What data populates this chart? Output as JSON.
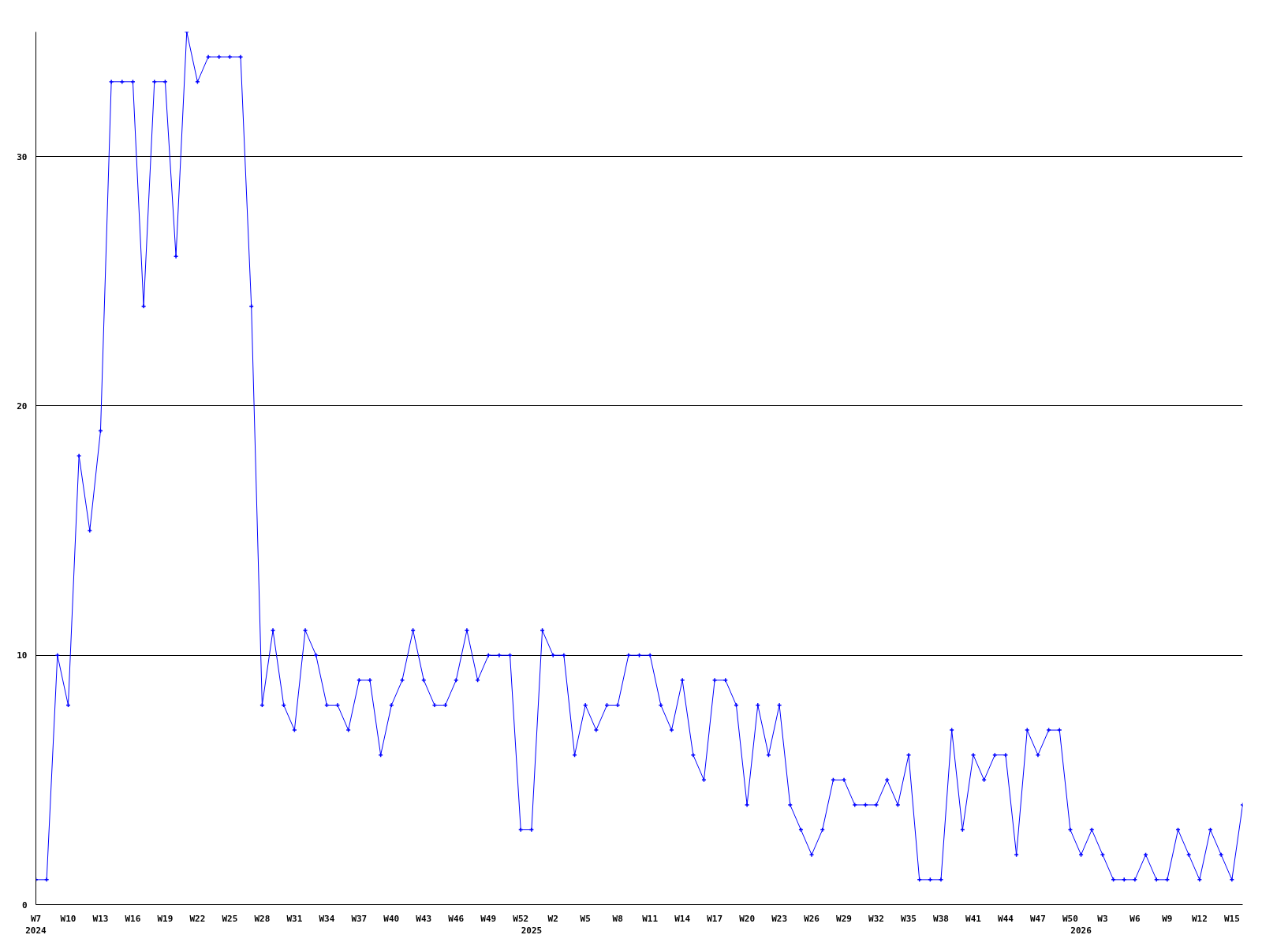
{
  "chart_data": {
    "type": "line",
    "categories": [
      "W7\n2024",
      null,
      null,
      "W10",
      null,
      null,
      "W13",
      null,
      null,
      "W16",
      null,
      null,
      "W19",
      null,
      null,
      "W22",
      null,
      null,
      "W25",
      null,
      null,
      "W28",
      null,
      null,
      "W31",
      null,
      null,
      "W34",
      null,
      null,
      "W37",
      null,
      null,
      "W40",
      null,
      null,
      "W43",
      null,
      null,
      "W46",
      null,
      null,
      "W49",
      null,
      null,
      "W52",
      "\n2025",
      null,
      "W2",
      null,
      null,
      "W5",
      null,
      null,
      "W8",
      null,
      null,
      "W11",
      null,
      null,
      "W14",
      null,
      null,
      "W17",
      null,
      null,
      "W20",
      null,
      null,
      "W23",
      null,
      null,
      "W26",
      null,
      null,
      "W29",
      null,
      null,
      "W32",
      null,
      null,
      "W35",
      null,
      null,
      "W38",
      null,
      null,
      "W41",
      null,
      null,
      "W44",
      null,
      null,
      "W47",
      null,
      null,
      "W50",
      "\n2026",
      null,
      "W3",
      null,
      null,
      "W6",
      null,
      null,
      "W9",
      null,
      null,
      "W12",
      null,
      null,
      "W15",
      null
    ],
    "series": [
      {
        "color": "#0000ff",
        "values": [
          1,
          1,
          10,
          8,
          18,
          15,
          19,
          33,
          33,
          33,
          24,
          33,
          33,
          26,
          35,
          33,
          34,
          34,
          34,
          34,
          24,
          8,
          11,
          8,
          7,
          11,
          10,
          8,
          8,
          7,
          9,
          9,
          6,
          8,
          9,
          11,
          9,
          8,
          8,
          9,
          11,
          9,
          10,
          10,
          10,
          3,
          3,
          11,
          10,
          10,
          6,
          8,
          7,
          8,
          8,
          10,
          10,
          10,
          8,
          7,
          9,
          6,
          5,
          9,
          9,
          8,
          4,
          8,
          6,
          8,
          4,
          3,
          2,
          3,
          5,
          5,
          4,
          4,
          4,
          5,
          4,
          6,
          1,
          1,
          1,
          7,
          3,
          6,
          5,
          6,
          6,
          2,
          7,
          6,
          7,
          7,
          3,
          2,
          3,
          2,
          1,
          1,
          1,
          2,
          1,
          1,
          3,
          2,
          1,
          3,
          2,
          1,
          4
        ]
      }
    ],
    "ylim": [
      0,
      35
    ],
    "yticks": [
      0,
      10,
      20,
      30
    ],
    "grid": "y",
    "marker": "cross",
    "line_style": "solid"
  }
}
